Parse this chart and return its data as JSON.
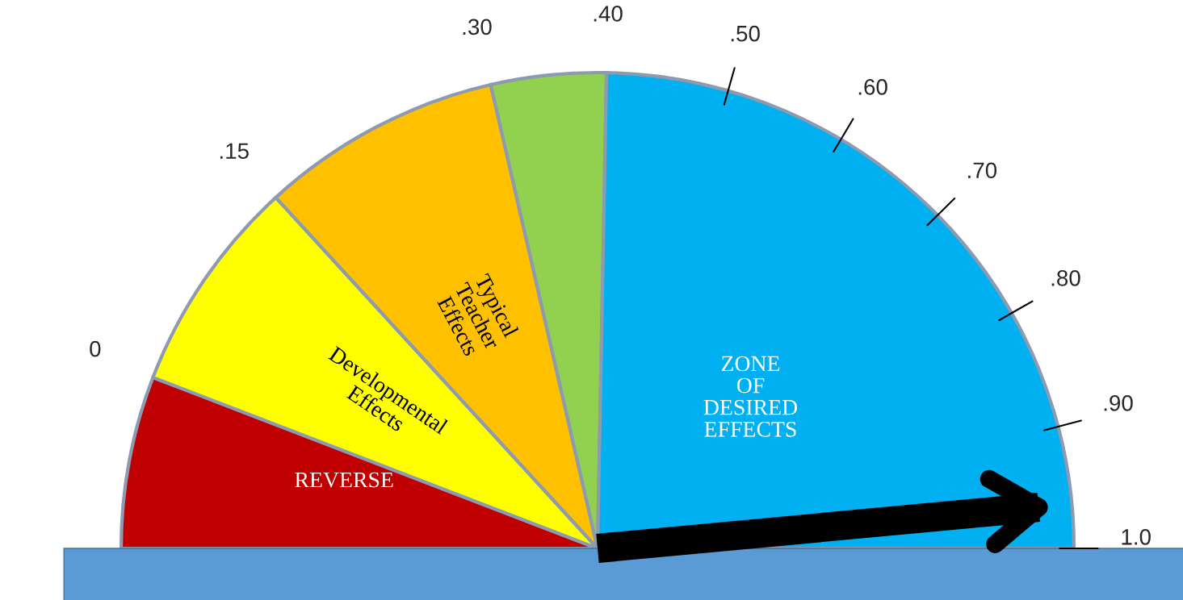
{
  "chart_data": {
    "type": "pie",
    "categories": [
      "REVERSE",
      "Developmental Effects",
      "Typical Teacher Effects",
      null,
      "ZONE OF DESIRED EFFECTS"
    ],
    "values": [
      11.7,
      14.7,
      16.4,
      7.8,
      49.4
    ],
    "colors": [
      "#c00000",
      "#ffff00",
      "#ffc000",
      "#92d050",
      "#00b0f0"
    ],
    "needle": "ZONE OF DESIRED EFFECTS",
    "annotations": [
      "0",
      ".15",
      ".30",
      ".40",
      ".50",
      ".60",
      ".70",
      ".80",
      ".90",
      "1.0"
    ]
  }
}
